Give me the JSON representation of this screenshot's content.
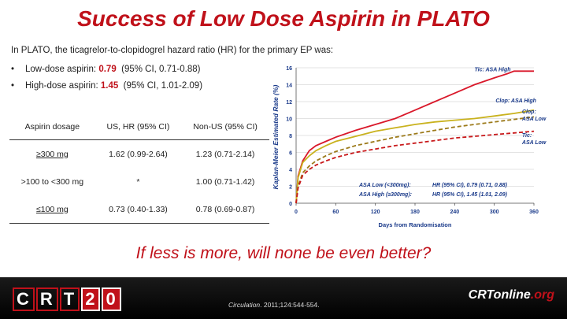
{
  "title": "Success of Low Dose Aspirin in PLATO",
  "intro": "In PLATO, the ticagrelor-to-clopidogrel hazard ratio (HR) for the primary EP was:",
  "bullets": [
    {
      "marker": "•",
      "prefix": "Low-dose aspirin: ",
      "value": "0.79",
      "suffix": "  (95% CI, 0.71-0.88)"
    },
    {
      "marker": "•",
      "prefix": "High-dose aspirin: ",
      "value": "1.45",
      "suffix": "  (95% CI, 1.01-2.09)"
    }
  ],
  "table": {
    "headers": [
      "Aspirin dosage",
      "US, HR (95% CI)",
      "Non-US (95% CI)"
    ],
    "rows": [
      [
        "≥300 mg",
        "1.62 (0.99-2.64)",
        "1.23 (0.71-2.14)"
      ],
      [
        ">100 to <300 mg",
        "*",
        "1.00 (0.71-1.42)"
      ],
      [
        "≤100 mg",
        "0.73 (0.40-1.33)",
        "0.78 (0.69-0.87)"
      ]
    ]
  },
  "question": "If less is more, will none be even better?",
  "footer": {
    "crt_logo_letters": [
      "C",
      "R",
      "T"
    ],
    "crt_logo_digits": [
      "2",
      "0"
    ],
    "citation_journal": "Circulation",
    "citation_rest": ". 2011;124:544-554.",
    "online_logo_main": "CRTonline",
    "online_logo_suffix": ".org"
  },
  "colors": {
    "accent": "#c0111a",
    "tic_high": "#d9182a",
    "clop_high": "#c9b21e",
    "tic_low": "#c8181a",
    "clop_low": "#9c7a1a"
  },
  "chart_data": {
    "type": "line",
    "xlabel": "Days from Randomisation",
    "ylabel": "Kaplan-Meier Estimated Rate (%)",
    "xlim": [
      0,
      360
    ],
    "ylim": [
      0,
      16
    ],
    "xticks": [
      0,
      60,
      120,
      180,
      240,
      300,
      360
    ],
    "yticks": [
      0,
      2,
      4,
      6,
      8,
      10,
      12,
      14,
      16
    ],
    "series": [
      {
        "name": "Tic: ASA High",
        "style": "solid",
        "color": "#d9182a",
        "x": [
          0,
          3,
          10,
          20,
          30,
          45,
          60,
          90,
          120,
          150,
          180,
          210,
          240,
          270,
          300,
          320,
          330,
          345,
          360
        ],
        "y": [
          0,
          3.2,
          5.0,
          6.2,
          6.8,
          7.3,
          7.8,
          8.6,
          9.3,
          10.0,
          11.0,
          12.0,
          13.0,
          14.0,
          14.8,
          15.3,
          15.6,
          15.6,
          15.6
        ]
      },
      {
        "name": "Clop: ASA High",
        "style": "solid",
        "color": "#c9b21e",
        "x": [
          0,
          3,
          10,
          20,
          30,
          45,
          60,
          90,
          120,
          150,
          180,
          210,
          240,
          270,
          300,
          330,
          360
        ],
        "y": [
          0,
          3.0,
          4.8,
          5.6,
          6.2,
          6.8,
          7.3,
          7.9,
          8.5,
          8.9,
          9.3,
          9.6,
          9.8,
          10.0,
          10.3,
          10.6,
          11.0
        ]
      },
      {
        "name": "Clop: ASA Low",
        "style": "dashed",
        "color": "#9c7a1a",
        "x": [
          0,
          3,
          10,
          20,
          30,
          45,
          60,
          90,
          120,
          150,
          180,
          210,
          240,
          270,
          300,
          330,
          360
        ],
        "y": [
          0,
          2.0,
          3.6,
          4.4,
          5.0,
          5.6,
          6.1,
          6.8,
          7.3,
          7.8,
          8.2,
          8.6,
          9.0,
          9.3,
          9.6,
          9.9,
          10.2
        ]
      },
      {
        "name": "Tic: ASA Low",
        "style": "dashed",
        "color": "#c8181a",
        "x": [
          0,
          3,
          10,
          20,
          30,
          45,
          60,
          90,
          120,
          150,
          180,
          210,
          240,
          270,
          300,
          330,
          360
        ],
        "y": [
          0,
          1.8,
          3.3,
          4.0,
          4.5,
          5.0,
          5.4,
          6.0,
          6.4,
          6.8,
          7.1,
          7.4,
          7.7,
          7.9,
          8.1,
          8.3,
          8.5
        ]
      }
    ],
    "series_labels": [
      {
        "lines": [
          "Tic: ASA High"
        ],
        "anchor_day": 270,
        "anchor_rate": 15.6
      },
      {
        "lines": [
          "Clop: ASA High"
        ],
        "anchor_day": 302,
        "anchor_rate": 11.9
      },
      {
        "lines": [
          "Clop:",
          "ASA Low"
        ],
        "anchor_day": 342,
        "anchor_rate": 10.6
      },
      {
        "lines": [
          "Tic:",
          "ASA Low"
        ],
        "anchor_day": 342,
        "anchor_rate": 7.8
      }
    ],
    "annotations": [
      {
        "label": "ASA Low (<300mg):",
        "text": "HR (95% CI), 0.79 (0.71, 0.88)"
      },
      {
        "label": "ASA High (≥300mg):",
        "text": "HR (95% CI), 1.45 (1.01, 2.09)"
      }
    ]
  }
}
